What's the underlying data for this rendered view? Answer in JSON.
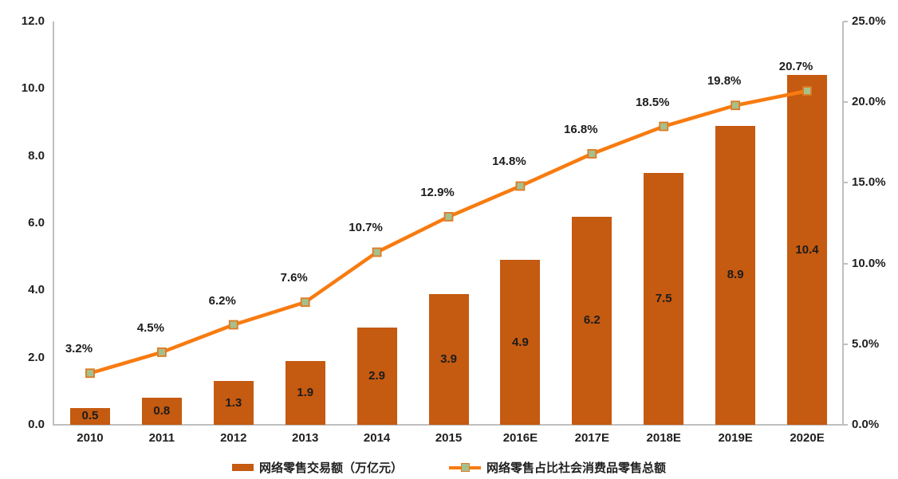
{
  "colors": {
    "bar": "#C55A11",
    "line": "#F87B10",
    "marker_fill": "#A6C08C",
    "marker_border": "#DE7A25",
    "axis_line": "#BFBFBF",
    "label_text": "#1F1F1F"
  },
  "chart_data": {
    "type": "bar",
    "subtype": "bar-line-combo",
    "title": "",
    "categories": [
      "2010",
      "2011",
      "2012",
      "2013",
      "2014",
      "2015",
      "2016E",
      "2017E",
      "2018E",
      "2019E",
      "2020E"
    ],
    "series": [
      {
        "name": "网络零售交易额（万亿元）",
        "type": "bar",
        "axis": "left",
        "values": [
          0.5,
          0.8,
          1.3,
          1.9,
          2.9,
          3.9,
          4.9,
          6.2,
          7.5,
          8.9,
          10.4
        ],
        "labels": [
          "0.5",
          "0.8",
          "1.3",
          "1.9",
          "2.9",
          "3.9",
          "4.9",
          "6.2",
          "7.5",
          "8.9",
          "10.4"
        ]
      },
      {
        "name": "网络零售占比社会消费品零售总额",
        "type": "line",
        "axis": "right",
        "values": [
          3.2,
          4.5,
          6.2,
          7.6,
          10.7,
          12.9,
          14.8,
          16.8,
          18.5,
          19.8,
          20.7
        ],
        "labels": [
          "3.2%",
          "4.5%",
          "6.2%",
          "7.6%",
          "10.7%",
          "12.9%",
          "14.8%",
          "16.8%",
          "18.5%",
          "19.8%",
          "20.7%"
        ]
      }
    ],
    "left_axis": {
      "min": 0,
      "max": 12,
      "step": 2,
      "tick_labels": [
        "0.0",
        "2.0",
        "4.0",
        "6.0",
        "8.0",
        "10.0",
        "12.0"
      ]
    },
    "right_axis": {
      "min": 0,
      "max": 25,
      "step": 5,
      "tick_labels": [
        "0.0%",
        "5.0%",
        "10.0%",
        "15.0%",
        "20.0%",
        "25.0%"
      ]
    },
    "grid": "off",
    "legend_position": "bottom"
  }
}
